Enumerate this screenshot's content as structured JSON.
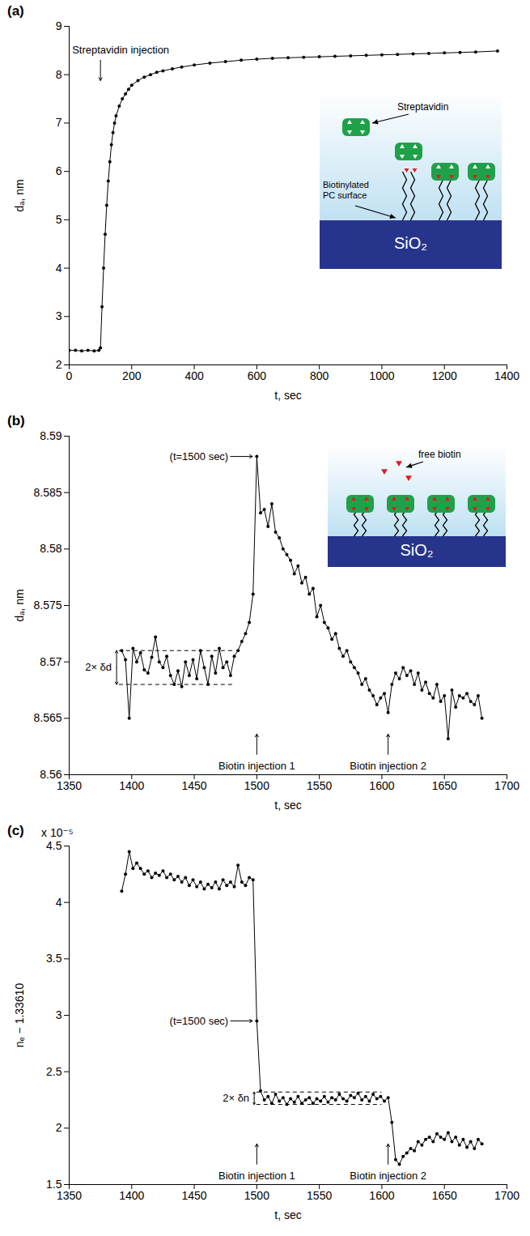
{
  "chart_data": [
    {
      "type": "line",
      "panel_label": "(a)",
      "x_label": "t, sec",
      "y_label": "dₐ, nm",
      "xlim": [
        0,
        1400
      ],
      "xticks": [
        0,
        200,
        400,
        600,
        800,
        1000,
        1200,
        1400
      ],
      "ylim": [
        2,
        9
      ],
      "yticks": [
        2,
        3,
        4,
        5,
        6,
        7,
        8,
        9
      ],
      "color": "#000000",
      "marker": "circle",
      "line_style": "solid",
      "x": [
        0,
        20,
        40,
        60,
        80,
        95,
        100,
        105,
        110,
        115,
        120,
        125,
        130,
        135,
        140,
        145,
        150,
        160,
        170,
        180,
        190,
        200,
        220,
        240,
        260,
        280,
        300,
        330,
        360,
        400,
        450,
        500,
        550,
        600,
        650,
        700,
        750,
        800,
        850,
        900,
        950,
        1000,
        1050,
        1100,
        1150,
        1200,
        1250,
        1300,
        1370
      ],
      "values": [
        2.3,
        2.3,
        2.29,
        2.3,
        2.29,
        2.3,
        2.35,
        3.2,
        4.0,
        4.7,
        5.3,
        5.8,
        6.2,
        6.55,
        6.8,
        7.0,
        7.15,
        7.35,
        7.5,
        7.6,
        7.7,
        7.78,
        7.88,
        7.95,
        8.0,
        8.05,
        8.08,
        8.12,
        8.16,
        8.2,
        8.24,
        8.27,
        8.3,
        8.32,
        8.34,
        8.35,
        8.36,
        8.37,
        8.38,
        8.39,
        8.4,
        8.41,
        8.42,
        8.43,
        8.44,
        8.45,
        8.46,
        8.47,
        8.49
      ],
      "annotations": [
        {
          "text": "Streptavidin injection",
          "x": 100,
          "side": "top"
        }
      ],
      "inset": {
        "protein": "Streptavidin",
        "surface": "Biotinylated PC surface",
        "substrate": "SiO₂"
      }
    },
    {
      "type": "line",
      "panel_label": "(b)",
      "x_label": "t, sec",
      "y_label": "dₐ, nm",
      "xlim": [
        1350,
        1700
      ],
      "xticks": [
        1350,
        1400,
        1450,
        1500,
        1550,
        1600,
        1650,
        1700
      ],
      "ylim": [
        8.56,
        8.59
      ],
      "yticks": [
        8.56,
        8.565,
        8.57,
        8.575,
        8.58,
        8.585,
        8.59
      ],
      "color": "#000000",
      "marker": "circle",
      "line_style": "solid",
      "x": [
        1392,
        1395,
        1398,
        1401,
        1404,
        1407,
        1410,
        1413,
        1416,
        1419,
        1422,
        1425,
        1428,
        1431,
        1434,
        1437,
        1440,
        1443,
        1446,
        1449,
        1452,
        1455,
        1458,
        1461,
        1464,
        1467,
        1470,
        1473,
        1476,
        1479,
        1482,
        1485,
        1488,
        1491,
        1494,
        1497,
        1500,
        1503,
        1506,
        1509,
        1512,
        1515,
        1518,
        1521,
        1524,
        1527,
        1530,
        1533,
        1536,
        1539,
        1542,
        1545,
        1548,
        1551,
        1554,
        1557,
        1560,
        1563,
        1566,
        1569,
        1572,
        1575,
        1578,
        1581,
        1584,
        1587,
        1590,
        1593,
        1596,
        1599,
        1602,
        1605,
        1608,
        1611,
        1614,
        1617,
        1620,
        1623,
        1626,
        1629,
        1632,
        1635,
        1638,
        1641,
        1644,
        1647,
        1650,
        1653,
        1656,
        1659,
        1662,
        1665,
        1668,
        1671,
        1674,
        1677,
        1680
      ],
      "values": [
        8.571,
        8.5702,
        8.565,
        8.5712,
        8.57,
        8.5708,
        8.5693,
        8.569,
        8.5704,
        8.5722,
        8.57,
        8.5695,
        8.5705,
        8.5688,
        8.568,
        8.5692,
        8.5678,
        8.57,
        8.5688,
        8.5702,
        8.5685,
        8.571,
        8.5695,
        8.568,
        8.5705,
        8.569,
        8.5712,
        8.5695,
        8.57,
        8.5688,
        8.5705,
        8.571,
        8.5718,
        8.5725,
        8.5735,
        8.576,
        8.5882,
        8.5832,
        8.5835,
        8.582,
        8.584,
        8.5815,
        8.581,
        8.58,
        8.5795,
        8.579,
        8.5778,
        8.5785,
        8.577,
        8.5775,
        8.576,
        8.5765,
        8.574,
        8.575,
        8.5735,
        8.573,
        8.572,
        8.5725,
        8.5712,
        8.5705,
        8.571,
        8.57,
        8.5695,
        8.569,
        8.568,
        8.5685,
        8.5675,
        8.567,
        8.5662,
        8.5668,
        8.5672,
        8.5655,
        8.568,
        8.569,
        8.5685,
        8.5695,
        8.5688,
        8.5692,
        8.568,
        8.569,
        8.5675,
        8.5682,
        8.5672,
        8.5668,
        8.568,
        8.5665,
        8.567,
        8.5632,
        8.5675,
        8.566,
        8.567,
        8.5668,
        8.5672,
        8.5665,
        8.5662,
        8.567,
        8.565
      ],
      "annotations": [
        {
          "text": "(t=1500 sec)",
          "x": 1500
        },
        {
          "text": "Biotin injection 1",
          "x": 1500,
          "side": "bottom"
        },
        {
          "text": "Biotin injection 2",
          "x": 1605,
          "side": "bottom"
        }
      ],
      "band": {
        "text": "2× δd",
        "lower": 8.568,
        "upper": 8.571,
        "x": [
          1390,
          1482
        ]
      },
      "inset": {
        "ligand": "free biotin",
        "substrate": "SiO₂"
      }
    },
    {
      "type": "line",
      "panel_label": "(c)",
      "x_label": "t, sec",
      "y_label": "nₑ − 1.33610",
      "y_multiplier": "x 10⁻⁵",
      "xlim": [
        1350,
        1700
      ],
      "xticks": [
        1350,
        1400,
        1450,
        1500,
        1550,
        1600,
        1650,
        1700
      ],
      "ylim": [
        1.5,
        4.5
      ],
      "yticks": [
        1.5,
        2,
        2.5,
        3,
        3.5,
        4,
        4.5
      ],
      "color": "#000000",
      "marker": "circle",
      "line_style": "solid",
      "x": [
        1392,
        1395,
        1398,
        1401,
        1404,
        1407,
        1410,
        1413,
        1416,
        1419,
        1422,
        1425,
        1428,
        1431,
        1434,
        1437,
        1440,
        1443,
        1446,
        1449,
        1452,
        1455,
        1458,
        1461,
        1464,
        1467,
        1470,
        1473,
        1476,
        1479,
        1482,
        1485,
        1488,
        1491,
        1494,
        1497,
        1500,
        1503,
        1506,
        1509,
        1512,
        1515,
        1518,
        1521,
        1524,
        1527,
        1530,
        1533,
        1536,
        1539,
        1542,
        1545,
        1548,
        1551,
        1554,
        1557,
        1560,
        1563,
        1566,
        1569,
        1572,
        1575,
        1578,
        1581,
        1584,
        1587,
        1590,
        1593,
        1596,
        1599,
        1602,
        1605,
        1608,
        1611,
        1614,
        1617,
        1620,
        1623,
        1626,
        1629,
        1632,
        1635,
        1638,
        1641,
        1644,
        1647,
        1650,
        1653,
        1656,
        1659,
        1662,
        1665,
        1668,
        1671,
        1674,
        1677,
        1680
      ],
      "values": [
        4.1,
        4.25,
        4.45,
        4.3,
        4.35,
        4.3,
        4.25,
        4.28,
        4.22,
        4.26,
        4.24,
        4.28,
        4.22,
        4.25,
        4.2,
        4.23,
        4.18,
        4.22,
        4.15,
        4.2,
        4.14,
        4.18,
        4.12,
        4.16,
        4.13,
        4.18,
        4.12,
        4.2,
        4.15,
        4.18,
        4.14,
        4.33,
        4.18,
        4.15,
        4.22,
        4.2,
        2.95,
        2.33,
        2.25,
        2.28,
        2.22,
        2.3,
        2.24,
        2.27,
        2.21,
        2.26,
        2.23,
        2.28,
        2.22,
        2.25,
        2.27,
        2.22,
        2.26,
        2.24,
        2.28,
        2.23,
        2.27,
        2.25,
        2.3,
        2.26,
        2.24,
        2.29,
        2.27,
        2.31,
        2.25,
        2.28,
        2.24,
        2.3,
        2.26,
        2.28,
        2.24,
        2.27,
        2.05,
        1.72,
        1.68,
        1.75,
        1.78,
        1.82,
        1.8,
        1.88,
        1.85,
        1.9,
        1.92,
        1.88,
        1.95,
        1.92,
        1.9,
        1.96,
        1.88,
        1.92,
        1.85,
        1.9,
        1.83,
        1.88,
        1.82,
        1.9,
        1.86
      ],
      "annotations": [
        {
          "text": "(t=1500 sec)",
          "x": 1500
        },
        {
          "text": "Biotin injection 1",
          "x": 1500,
          "side": "bottom"
        },
        {
          "text": "Biotin injection 2",
          "x": 1605,
          "side": "bottom"
        }
      ],
      "band": {
        "text": "2× δn",
        "lower": 2.21,
        "upper": 2.32,
        "x": [
          1500,
          1600
        ]
      }
    }
  ]
}
